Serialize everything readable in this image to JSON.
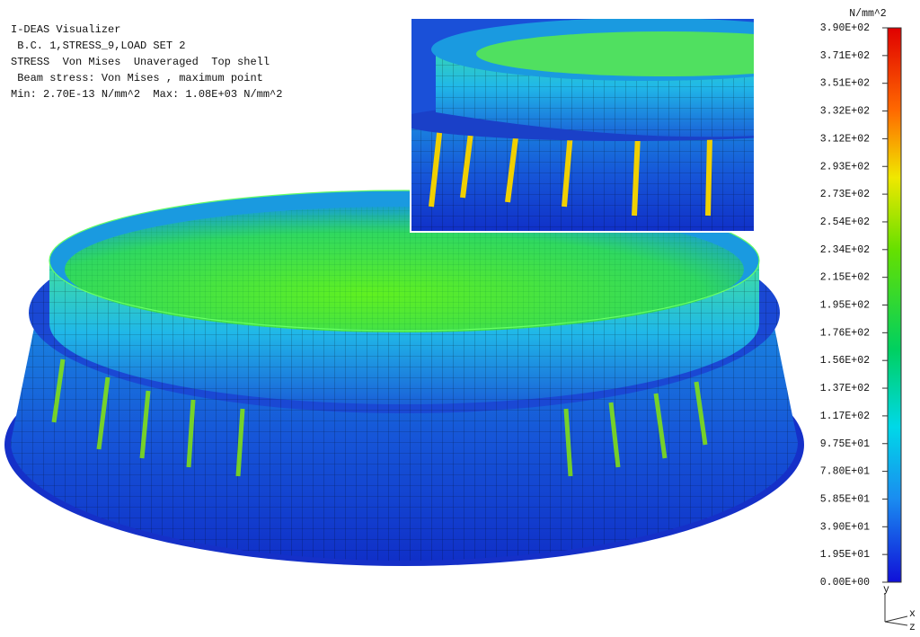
{
  "header": {
    "lines": [
      "I-DEAS Visualizer",
      " B.C. 1,STRESS_9,LOAD SET 2",
      "STRESS  Von Mises  Unaveraged  Top shell",
      " Beam stress: Von Mises , maximum point",
      "Min: 2.70E-13 N/mm^2  Max: 1.08E+03 N/mm^2"
    ]
  },
  "legend": {
    "unit": "N/mm^2",
    "labels": [
      "3.90E+02",
      "3.71E+02",
      "3.51E+02",
      "3.32E+02",
      "3.12E+02",
      "2.93E+02",
      "2.73E+02",
      "2.54E+02",
      "2.34E+02",
      "2.15E+02",
      "1.95E+02",
      "1.76E+02",
      "1.56E+02",
      "1.37E+02",
      "1.17E+02",
      "9.75E+01",
      "7.80E+01",
      "5.85E+01",
      "3.90E+01",
      "1.95E+01",
      "0.00E+00"
    ]
  },
  "triad": {
    "y": "y",
    "x": "x",
    "z": "z"
  }
}
